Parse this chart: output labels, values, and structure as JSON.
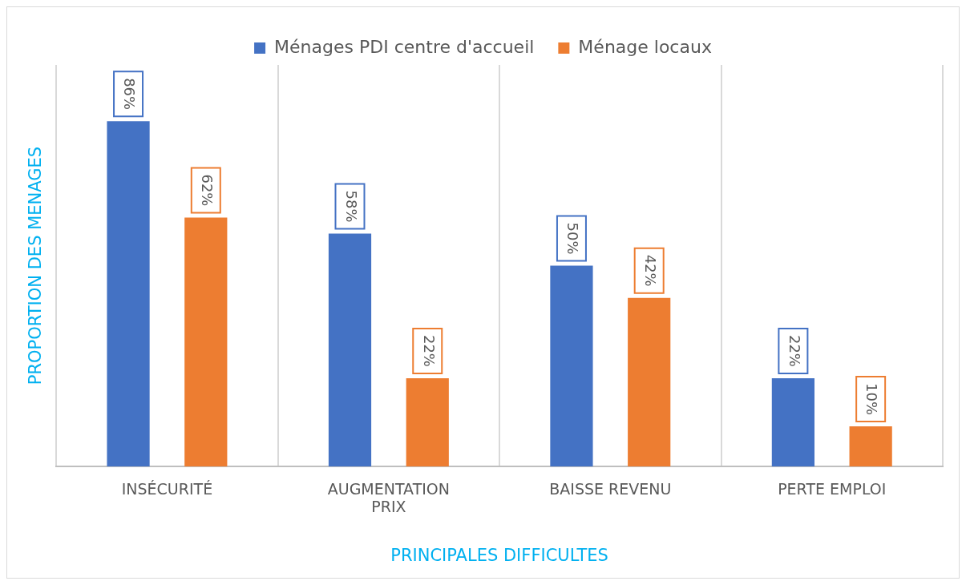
{
  "chart_data": {
    "type": "bar",
    "xlabel": "PRINCIPALES DIFFICULTES",
    "ylabel": "PROPORTION DES MENAGES",
    "categories": [
      "INSÉCURITÉ",
      "AUGMENTATION PRIX",
      "BAISSE REVENU",
      "PERTE EMPLOI"
    ],
    "grid": "x",
    "legend": "top",
    "series": [
      {
        "name": "Ménages PDI centre d'accueil",
        "color": "#4472c4",
        "values": [
          86,
          58,
          50,
          22
        ],
        "value_labels": [
          "86%",
          "58%",
          "50%",
          "22%"
        ]
      },
      {
        "name": "Ménage locaux",
        "color": "#ed7d31",
        "values": [
          62,
          22,
          42,
          10
        ],
        "value_labels": [
          "62%",
          "22%",
          "42%",
          "10%"
        ]
      }
    ]
  }
}
